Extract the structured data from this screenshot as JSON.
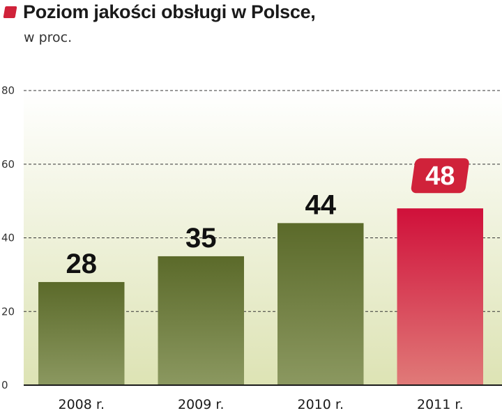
{
  "colors": {
    "accent": "#d0223a",
    "bar": "#5b6a2a",
    "bar_light": "#8b9860",
    "highlight_top": "#d0103a",
    "highlight_bottom": "#e07a78",
    "background_top": "#ffffff",
    "background_bottom": "#dde3b4"
  },
  "chart_data": {
    "type": "bar",
    "title": "Poziom jakości obsługi w Polsce,",
    "subtitle": "w proc.",
    "categories": [
      "2008 r.",
      "2009 r.",
      "2010 r.",
      "2011 r."
    ],
    "values": [
      28,
      35,
      44,
      48
    ],
    "value_labels": [
      "28",
      "35",
      "44",
      "48"
    ],
    "highlight_index": 3,
    "ylim": [
      0,
      80
    ],
    "yticks": [
      0,
      20,
      40,
      60,
      80
    ],
    "ytick_labels": [
      "0",
      "20",
      "40",
      "60",
      "80"
    ],
    "grid": true,
    "xlabel": "",
    "ylabel": ""
  }
}
